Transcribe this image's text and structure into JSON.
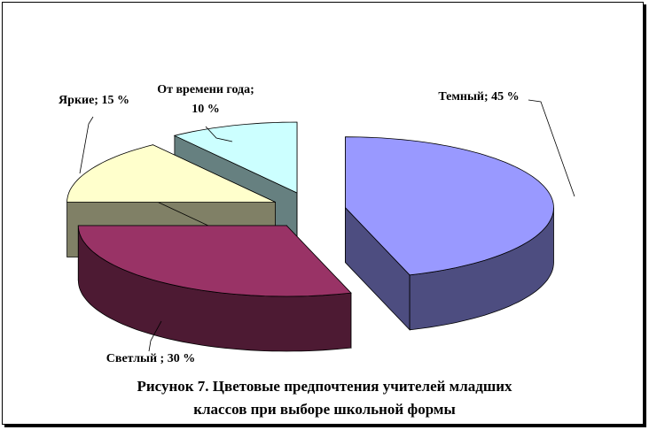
{
  "chart_data": {
    "type": "pie3d",
    "title": "Рисунок 7. Цветовые предпочтения учителей младших\nклассов  при выборе школьной формы",
    "categories": [
      "Темный",
      "Светлый",
      "Яркие",
      "От времени года"
    ],
    "values": [
      45,
      30,
      15,
      10
    ],
    "value_labels": [
      "Темный; 45 %",
      "Светлый ; 30 %",
      "Яркие; 15 %",
      "От времени года;\n10 %"
    ],
    "colors": [
      "#9999ff",
      "#993366",
      "#ffffcc",
      "#ccffff"
    ]
  }
}
